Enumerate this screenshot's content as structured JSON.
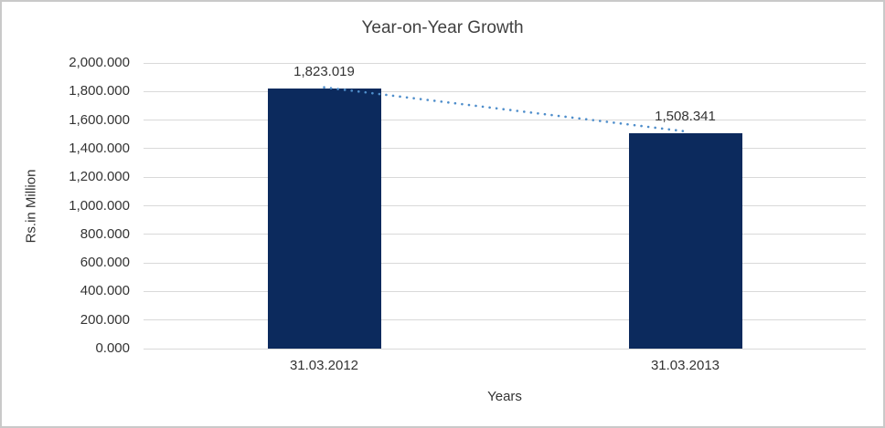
{
  "chart_data": {
    "type": "bar",
    "title": "Year-on-Year Growth",
    "xlabel": "Years",
    "ylabel": "Rs.in Million",
    "categories": [
      "31.03.2012",
      "31.03.2013"
    ],
    "series": [
      {
        "name": "Rs.in Million",
        "values": [
          1823.019,
          1508.341
        ]
      }
    ],
    "data_labels": [
      "1,823.019",
      "1,508.341"
    ],
    "y_ticks": [
      "2,000.000",
      "1,800.000",
      "1,600.000",
      "1,400.000",
      "1,200.000",
      "1,000.000",
      "800.000",
      "600.000",
      "400.000",
      "200.000",
      "0.000"
    ],
    "ylim": [
      0,
      2000
    ],
    "y_step": 200,
    "grid": true,
    "legend": "none",
    "trendline": {
      "style": "dotted",
      "from_category": "31.03.2012",
      "to_category": "31.03.2013"
    },
    "colors": {
      "bar": "#0c2a5d",
      "trendline": "#4f8ecb",
      "gridline": "#d9d9d9",
      "title_text": "#404040",
      "label_text": "#333333",
      "border": "#c9c9c9",
      "background": "#ffffff"
    }
  }
}
